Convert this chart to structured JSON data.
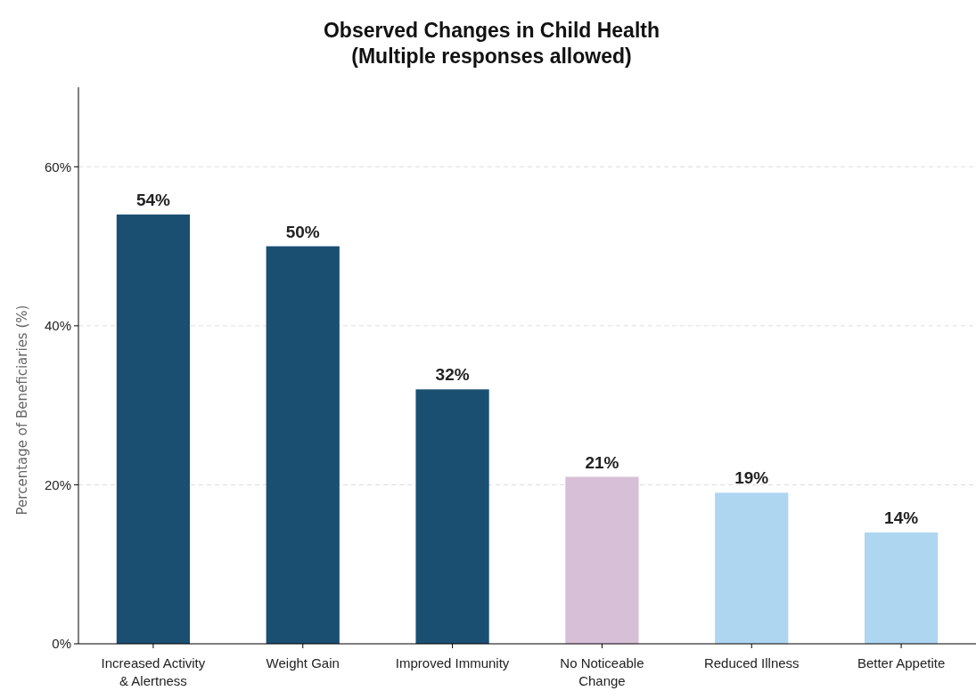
{
  "chart_data": {
    "type": "bar",
    "title": "Observed Changes in Child Health\n(Multiple responses allowed)",
    "ylabel": "Percentage of Beneficiaries (%)",
    "categories": [
      "Increased Activity\n& Alertness",
      "Weight Gain",
      "Improved Immunity",
      "No Noticeable\nChange",
      "Reduced Illness",
      "Better Appetite"
    ],
    "values": [
      54,
      50,
      32,
      21,
      19,
      14
    ],
    "colors": [
      "#1b4f72",
      "#1b4f72",
      "#1b4f72",
      "#d7bfd8",
      "#aed6f1",
      "#aed6f1"
    ],
    "value_labels": [
      "54%",
      "50%",
      "32%",
      "21%",
      "19%",
      "14%"
    ],
    "ylim": [
      0,
      70
    ],
    "yticks": [
      {
        "value": 0,
        "label": "0%"
      },
      {
        "value": 20,
        "label": "20%"
      },
      {
        "value": 40,
        "label": "40%"
      },
      {
        "value": 60,
        "label": "60%"
      }
    ],
    "grid": "y"
  }
}
